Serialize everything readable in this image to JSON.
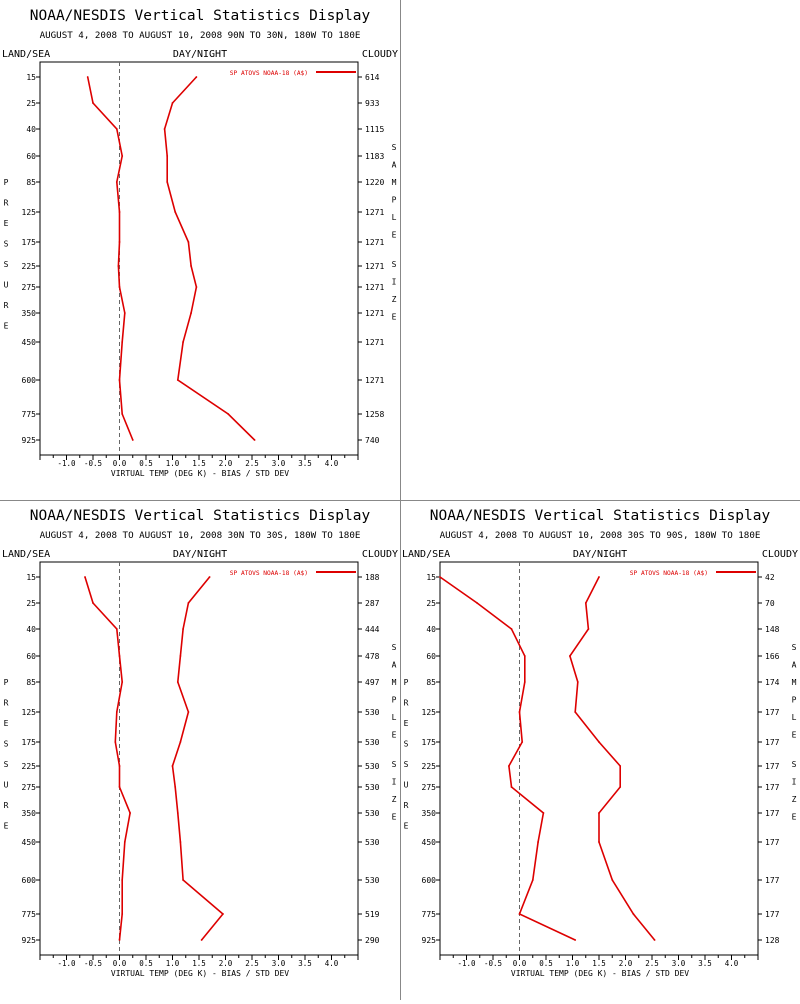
{
  "colors": {
    "series": "#dd0000",
    "axis": "#000000",
    "zero_line": "#666666",
    "divider": "#888888"
  },
  "panels": [
    {
      "title": "NOAA/NESDIS Vertical Statistics Display",
      "subtitle": "AUGUST 4, 2008 TO AUGUST 10, 2008  90N TO 30N, 180W TO 180E",
      "header_left": "LAND/SEA",
      "header_center": "DAY/NIGHT",
      "header_right": "CLOUDY",
      "left_axis_title": "PRESSURE",
      "right_axis_title": "SAMPLE SIZE",
      "xlabel": "VIRTUAL TEMP (DEG K) - BIAS / STD DEV",
      "legend": "SP ATOVS NOAA-18 (A$)",
      "chart_data": {
        "type": "line",
        "xlim": [
          -1.5,
          4.5
        ],
        "x_ticks": [
          "-1.0",
          "-0.5",
          "0.0",
          "0.5",
          "1.0",
          "1.5",
          "2.0",
          "2.5",
          "3.0",
          "3.5",
          "4.0"
        ],
        "pressure_levels": [
          "15",
          "25",
          "40",
          "60",
          "85",
          "125",
          "175",
          "225",
          "275",
          "350",
          "450",
          "600",
          "775",
          "925"
        ],
        "sample_size": [
          "614",
          "933",
          "1115",
          "1183",
          "1220",
          "1271",
          "1271",
          "1271",
          "1271",
          "1271",
          "1271",
          "1271",
          "1258",
          "740"
        ],
        "series": [
          {
            "values": [
              -0.6,
              -0.5,
              -0.05,
              0.05,
              -0.05,
              0.0,
              0.0,
              -0.02,
              0.0,
              0.1,
              0.05,
              0.0,
              0.05,
              0.25
            ]
          },
          {
            "values": [
              1.45,
              1.0,
              0.85,
              0.9,
              0.9,
              1.05,
              1.3,
              1.35,
              1.45,
              1.35,
              1.2,
              1.1,
              2.05,
              2.55
            ]
          }
        ]
      }
    },
    {
      "title": "NOAA/NESDIS Vertical Statistics Display",
      "subtitle": "AUGUST 4, 2008 TO AUGUST 10, 2008  30N TO 30S, 180W TO 180E",
      "header_left": "LAND/SEA",
      "header_center": "DAY/NIGHT",
      "header_right": "CLOUDY",
      "left_axis_title": "PRESSURE",
      "right_axis_title": "SAMPLE SIZE",
      "xlabel": "VIRTUAL TEMP (DEG K) - BIAS / STD DEV",
      "legend": "SP ATOVS NOAA-18 (A$)",
      "chart_data": {
        "type": "line",
        "xlim": [
          -1.5,
          4.5
        ],
        "x_ticks": [
          "-1.0",
          "-0.5",
          "0.0",
          "0.5",
          "1.0",
          "1.5",
          "2.0",
          "2.5",
          "3.0",
          "3.5",
          "4.0"
        ],
        "pressure_levels": [
          "15",
          "25",
          "40",
          "60",
          "85",
          "125",
          "175",
          "225",
          "275",
          "350",
          "450",
          "600",
          "775",
          "925"
        ],
        "sample_size": [
          "188",
          "287",
          "444",
          "478",
          "497",
          "530",
          "530",
          "530",
          "530",
          "530",
          "530",
          "530",
          "519",
          "290"
        ],
        "series": [
          {
            "values": [
              -0.65,
              -0.5,
              -0.05,
              0.0,
              0.05,
              -0.05,
              -0.08,
              0.0,
              0.0,
              0.2,
              0.1,
              0.05,
              0.05,
              0.0
            ]
          },
          {
            "values": [
              1.7,
              1.3,
              1.2,
              1.15,
              1.1,
              1.3,
              1.15,
              1.0,
              1.05,
              1.1,
              1.15,
              1.2,
              1.95,
              1.55
            ]
          }
        ]
      }
    },
    {
      "title": "NOAA/NESDIS Vertical Statistics Display",
      "subtitle": "AUGUST 4, 2008 TO AUGUST 10, 2008  30S TO 90S, 180W TO 180E",
      "header_left": "LAND/SEA",
      "header_center": "DAY/NIGHT",
      "header_right": "CLOUDY",
      "left_axis_title": "PRESSURE",
      "right_axis_title": "SAMPLE SIZE",
      "xlabel": "VIRTUAL TEMP (DEG K) - BIAS / STD DEV",
      "legend": "SP ATOVS NOAA-18 (A$)",
      "chart_data": {
        "type": "line",
        "xlim": [
          -1.5,
          4.5
        ],
        "x_ticks": [
          "-1.0",
          "-0.5",
          "0.0",
          "0.5",
          "1.0",
          "1.5",
          "2.0",
          "2.5",
          "3.0",
          "3.5",
          "4.0"
        ],
        "pressure_levels": [
          "15",
          "25",
          "40",
          "60",
          "85",
          "125",
          "175",
          "225",
          "275",
          "350",
          "450",
          "600",
          "775",
          "925"
        ],
        "sample_size": [
          "42",
          "70",
          "148",
          "166",
          "174",
          "177",
          "177",
          "177",
          "177",
          "177",
          "177",
          "177",
          "177",
          "128"
        ],
        "series": [
          {
            "values": [
              -1.5,
              -0.8,
              -0.15,
              0.1,
              0.1,
              0.0,
              0.05,
              -0.2,
              -0.15,
              0.45,
              0.35,
              0.25,
              0.0,
              1.05
            ]
          },
          {
            "values": [
              1.5,
              1.25,
              1.3,
              0.95,
              1.1,
              1.05,
              1.5,
              1.9,
              1.9,
              1.5,
              1.5,
              1.75,
              2.15,
              2.55
            ]
          }
        ]
      }
    }
  ]
}
